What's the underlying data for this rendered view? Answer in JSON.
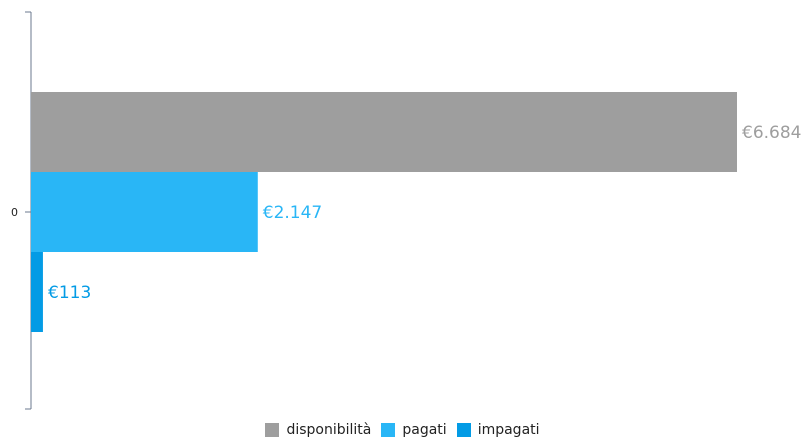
{
  "chart_data": {
    "type": "bar",
    "orientation": "horizontal",
    "categories": [
      "0"
    ],
    "series": [
      {
        "name": "disponibilità",
        "values": [
          6684
        ],
        "label": "€6.684",
        "color": "#9e9e9e"
      },
      {
        "name": "pagati",
        "values": [
          2147
        ],
        "label": "€2.147",
        "color": "#29b6f6"
      },
      {
        "name": "impagati",
        "values": [
          113
        ],
        "label": "€113",
        "color": "#039be5"
      }
    ],
    "title": "",
    "xlabel": "",
    "ylabel": "",
    "xlim": [
      0,
      6684
    ],
    "grid": false,
    "legend": "bottom-center",
    "label_colors": [
      "#9e9e9e",
      "#29b6f6",
      "#039be5"
    ]
  }
}
